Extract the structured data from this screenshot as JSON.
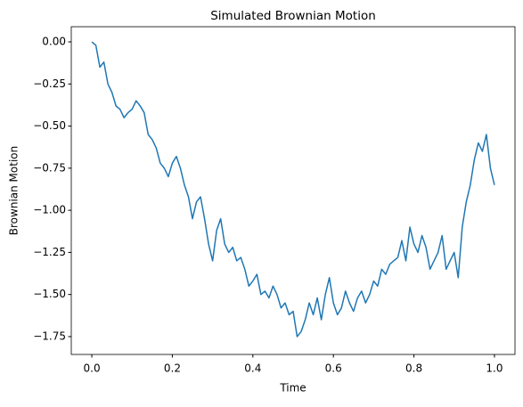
{
  "chart_data": {
    "type": "line",
    "title": "Simulated Brownian Motion",
    "x_label": "Time",
    "y_label": "Brownian Motion",
    "x": [
      0,
      0.01,
      0.02,
      0.03,
      0.04,
      0.05,
      0.06,
      0.07,
      0.08,
      0.09,
      0.1,
      0.11,
      0.12,
      0.13,
      0.14,
      0.15,
      0.16,
      0.17,
      0.18,
      0.19,
      0.2,
      0.21,
      0.22,
      0.23,
      0.24,
      0.25,
      0.26,
      0.27,
      0.28,
      0.29,
      0.3,
      0.31,
      0.32,
      0.33,
      0.34,
      0.35,
      0.36,
      0.37,
      0.38,
      0.39,
      0.4,
      0.41,
      0.42,
      0.43,
      0.44,
      0.45,
      0.46,
      0.47,
      0.48,
      0.49,
      0.5,
      0.51,
      0.52,
      0.53,
      0.54,
      0.55,
      0.56,
      0.57,
      0.58,
      0.59,
      0.6,
      0.61,
      0.62,
      0.63,
      0.64,
      0.65,
      0.66,
      0.67,
      0.68,
      0.69,
      0.7,
      0.71,
      0.72,
      0.73,
      0.74,
      0.75,
      0.76,
      0.77,
      0.78,
      0.79,
      0.8,
      0.81,
      0.82,
      0.83,
      0.84,
      0.85,
      0.86,
      0.87,
      0.88,
      0.89,
      0.9,
      0.91,
      0.92,
      0.93,
      0.94,
      0.95,
      0.96,
      0.97,
      0.98,
      0.99,
      1.0
    ],
    "series": [
      {
        "color": "#1f77b4",
        "values": [
          0,
          -0.02,
          -0.15,
          -0.12,
          -0.25,
          -0.3,
          -0.38,
          -0.4,
          -0.45,
          -0.42,
          -0.4,
          -0.35,
          -0.38,
          -0.42,
          -0.55,
          -0.58,
          -0.63,
          -0.72,
          -0.75,
          -0.8,
          -0.72,
          -0.68,
          -0.75,
          -0.85,
          -0.92,
          -1.05,
          -0.95,
          -0.92,
          -1.05,
          -1.2,
          -1.3,
          -1.12,
          -1.05,
          -1.2,
          -1.25,
          -1.22,
          -1.3,
          -1.28,
          -1.35,
          -1.45,
          -1.42,
          -1.38,
          -1.5,
          -1.48,
          -1.52,
          -1.45,
          -1.5,
          -1.58,
          -1.55,
          -1.62,
          -1.6,
          -1.75,
          -1.72,
          -1.65,
          -1.55,
          -1.62,
          -1.52,
          -1.65,
          -1.5,
          -1.4,
          -1.55,
          -1.62,
          -1.58,
          -1.48,
          -1.55,
          -1.6,
          -1.52,
          -1.48,
          -1.55,
          -1.5,
          -1.42,
          -1.45,
          -1.35,
          -1.38,
          -1.32,
          -1.3,
          -1.28,
          -1.18,
          -1.3,
          -1.1,
          -1.2,
          -1.25,
          -1.15,
          -1.22,
          -1.35,
          -1.3,
          -1.25,
          -1.15,
          -1.35,
          -1.3,
          -1.25,
          -1.4,
          -1.1,
          -0.95,
          -0.85,
          -0.7,
          -0.6,
          -0.65,
          -0.55,
          -0.75,
          -0.85
        ]
      }
    ],
    "xlim": [
      -0.051,
      1.051
    ],
    "ylim": [
      -1.856,
      0.09
    ],
    "xticks": [
      {
        "value": 0,
        "label": "0.0"
      },
      {
        "value": 0.2,
        "label": "0.2"
      },
      {
        "value": 0.4,
        "label": "0.4"
      },
      {
        "value": 0.6,
        "label": "0.6"
      },
      {
        "value": 0.8,
        "label": "0.8"
      },
      {
        "value": 1,
        "label": "1.0"
      }
    ],
    "yticks": [
      {
        "value": 0,
        "label": "0.00"
      },
      {
        "value": -0.25,
        "label": "−0.25"
      },
      {
        "value": -0.5,
        "label": "−0.50"
      },
      {
        "value": -0.75,
        "label": "−0.75"
      },
      {
        "value": -1,
        "label": "−1.00"
      },
      {
        "value": -1.25,
        "label": "−1.25"
      },
      {
        "value": -1.5,
        "label": "−1.50"
      },
      {
        "value": -1.75,
        "label": "−1.75"
      }
    ],
    "grid": false
  }
}
